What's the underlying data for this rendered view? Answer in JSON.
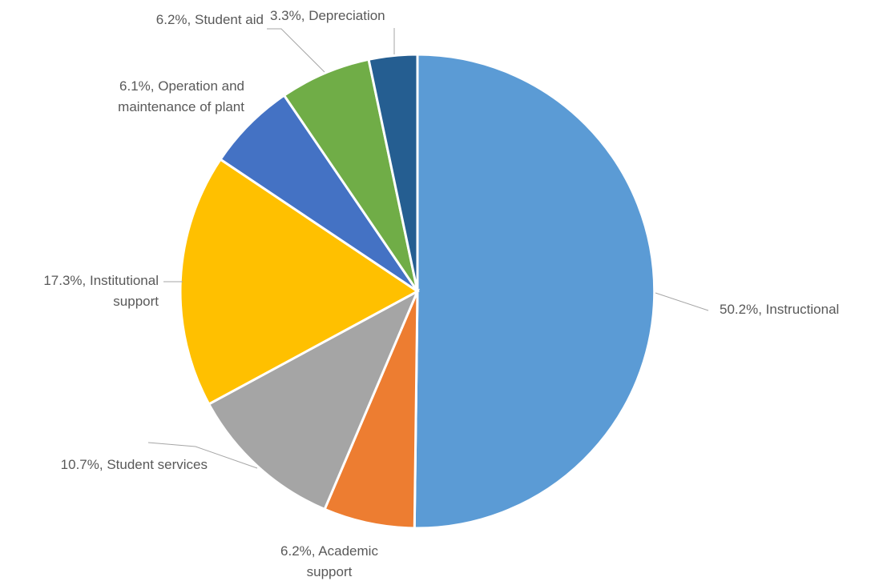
{
  "chart_data": {
    "type": "pie",
    "title": "",
    "slices": [
      {
        "label": "Instructional",
        "value": 50.2,
        "display": "50.2%, Instructional",
        "lines": [
          "50.2%, Instructional"
        ],
        "color": "#5b9bd5"
      },
      {
        "label": "Academic support",
        "value": 6.2,
        "display": "6.2%, Academic support",
        "lines": [
          "6.2%, Academic",
          "support"
        ],
        "color": "#ed7d31"
      },
      {
        "label": "Student services",
        "value": 10.7,
        "display": "10.7%, Student services",
        "lines": [
          "10.7%, Student services"
        ],
        "color": "#a5a5a5"
      },
      {
        "label": "Institutional support",
        "value": 17.3,
        "display": "17.3%, Institutional support",
        "lines": [
          "17.3%, Institutional",
          "support"
        ],
        "color": "#ffc000"
      },
      {
        "label": "Operation and maintenance of plant",
        "value": 6.1,
        "display": "6.1%, Operation and maintenance of plant",
        "lines": [
          "6.1%, Operation and",
          "maintenance of plant"
        ],
        "color": "#4472c4"
      },
      {
        "label": "Student aid",
        "value": 6.2,
        "display": "6.2%, Student aid",
        "lines": [
          "6.2%, Student aid"
        ],
        "color": "#70ad47"
      },
      {
        "label": "Depreciation",
        "value": 3.3,
        "display": "3.3%, Depreciation",
        "lines": [
          "3.3%, Depreciation"
        ],
        "color": "#255e91"
      }
    ],
    "start": "12 o'clock",
    "direction": "clockwise",
    "legend": "none",
    "data_labels": "outside with leader lines"
  }
}
